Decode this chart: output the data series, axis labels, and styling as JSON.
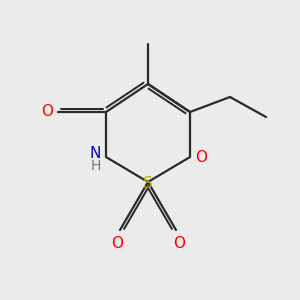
{
  "bg_color": "#ebebeb",
  "atom_colors": {
    "O": "#ff0000",
    "N": "#0000cc",
    "S": "#b8b800",
    "H": "#777777"
  },
  "bond_color": "#2a2a2a",
  "bond_lw": 1.6,
  "font_size": 11
}
